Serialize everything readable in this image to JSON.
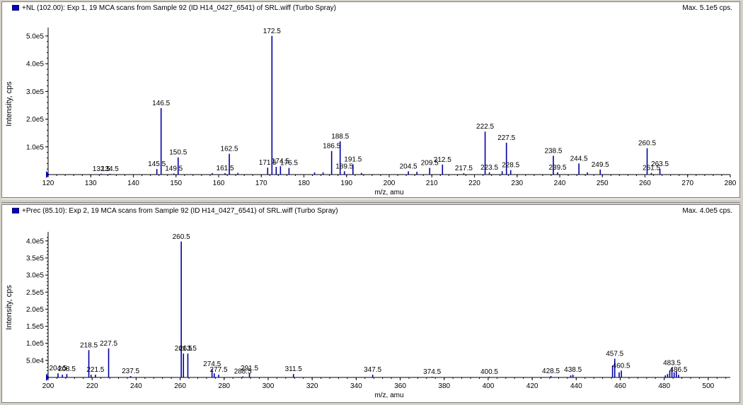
{
  "panels": [
    {
      "header": "+NL (102.00): Exp 1, 19 MCA scans from Sample 92 (ID H14_0427_6541) of SRL.wiff (Turbo Spray)",
      "max_label": "Max. 5.1e5 cps.",
      "legend_color": "#0000cc"
    },
    {
      "header": "+Prec (85.10): Exp 2, 19 MCA scans from Sample 92 (ID H14_0427_6541) of SRL.wiff (Turbo Spray)",
      "max_label": "Max. 4.0e5 cps.",
      "legend_color": "#0000cc"
    }
  ],
  "chart_data": [
    {
      "type": "bar",
      "title": "+NL (102.00): Exp 1, 19 MCA scans from Sample 92 (ID H14_0427_6541) of SRL.wiff (Turbo Spray)",
      "xlabel": "m/z, amu",
      "ylabel": "Intensity, cps",
      "xlim": [
        120,
        280
      ],
      "ylim": [
        0,
        510000
      ],
      "color": "#0000a0",
      "xticks": [
        120,
        130,
        140,
        150,
        160,
        170,
        180,
        190,
        200,
        210,
        220,
        230,
        240,
        250,
        260,
        270,
        280
      ],
      "yticks": [
        {
          "value": 100000,
          "label": "1.0e5"
        },
        {
          "value": 200000,
          "label": "2.0e5"
        },
        {
          "value": 300000,
          "label": "3.0e5"
        },
        {
          "value": 400000,
          "label": "4.0e5"
        },
        {
          "value": 500000,
          "label": "5.0e5"
        }
      ],
      "peaks": [
        {
          "mz": 132.5,
          "intensity": 3000,
          "label": "132.5"
        },
        {
          "mz": 134.5,
          "intensity": 3000,
          "label": "134.5"
        },
        {
          "mz": 145.5,
          "intensity": 20000,
          "label": "145.5"
        },
        {
          "mz": 146.5,
          "intensity": 240000,
          "label": "146.5"
        },
        {
          "mz": 149.5,
          "intensity": 4000,
          "label": "149.5"
        },
        {
          "mz": 150.5,
          "intensity": 62000,
          "label": "150.5"
        },
        {
          "mz": 158.5,
          "intensity": 5000,
          "label": ""
        },
        {
          "mz": 161.5,
          "intensity": 5000,
          "label": "161.5"
        },
        {
          "mz": 162.5,
          "intensity": 75000,
          "label": "162.5"
        },
        {
          "mz": 164.5,
          "intensity": 6000,
          "label": ""
        },
        {
          "mz": 171.5,
          "intensity": 25000,
          "label": "171.5"
        },
        {
          "mz": 172.5,
          "intensity": 500000,
          "label": "172.5"
        },
        {
          "mz": 173.5,
          "intensity": 28000,
          "label": ""
        },
        {
          "mz": 174.5,
          "intensity": 30000,
          "label": "174.5"
        },
        {
          "mz": 176.5,
          "intensity": 24000,
          "label": "176.5"
        },
        {
          "mz": 182.5,
          "intensity": 8000,
          "label": ""
        },
        {
          "mz": 184.5,
          "intensity": 8000,
          "label": ""
        },
        {
          "mz": 186.5,
          "intensity": 85000,
          "label": "186.5"
        },
        {
          "mz": 188.5,
          "intensity": 120000,
          "label": "188.5"
        },
        {
          "mz": 189.5,
          "intensity": 12000,
          "label": "189.5"
        },
        {
          "mz": 191.5,
          "intensity": 37000,
          "label": "191.5"
        },
        {
          "mz": 193.5,
          "intensity": 6000,
          "label": ""
        },
        {
          "mz": 204.5,
          "intensity": 12000,
          "label": "204.5"
        },
        {
          "mz": 206.5,
          "intensity": 10000,
          "label": ""
        },
        {
          "mz": 209.5,
          "intensity": 24000,
          "label": "209.5"
        },
        {
          "mz": 212.5,
          "intensity": 36000,
          "label": "212.5"
        },
        {
          "mz": 217.5,
          "intensity": 5000,
          "label": "217.5"
        },
        {
          "mz": 222.5,
          "intensity": 155000,
          "label": "222.5"
        },
        {
          "mz": 223.5,
          "intensity": 8000,
          "label": "223.5"
        },
        {
          "mz": 226.5,
          "intensity": 12000,
          "label": ""
        },
        {
          "mz": 227.5,
          "intensity": 115000,
          "label": "227.5"
        },
        {
          "mz": 228.5,
          "intensity": 16000,
          "label": "228.5"
        },
        {
          "mz": 238.5,
          "intensity": 68000,
          "label": "238.5"
        },
        {
          "mz": 239.5,
          "intensity": 8000,
          "label": "239.5"
        },
        {
          "mz": 244.5,
          "intensity": 40000,
          "label": "244.5"
        },
        {
          "mz": 246.5,
          "intensity": 8000,
          "label": ""
        },
        {
          "mz": 249.5,
          "intensity": 18000,
          "label": "249.5"
        },
        {
          "mz": 260.5,
          "intensity": 95000,
          "label": "260.5"
        },
        {
          "mz": 261.5,
          "intensity": 6000,
          "label": "261.5"
        },
        {
          "mz": 263.5,
          "intensity": 20000,
          "label": "263.5"
        }
      ]
    },
    {
      "type": "bar",
      "title": "+Prec (85.10): Exp 2, 19 MCA scans from Sample 92 (ID H14_0427_6541) of SRL.wiff (Turbo Spray)",
      "xlabel": "m/z, amu",
      "ylabel": "Intensity, cps",
      "xlim": [
        200,
        510
      ],
      "ylim": [
        0,
        410000
      ],
      "color": "#0000a0",
      "xticks": [
        200,
        220,
        240,
        260,
        280,
        300,
        320,
        340,
        360,
        380,
        400,
        420,
        440,
        460,
        480,
        500
      ],
      "yticks": [
        {
          "value": 50000,
          "label": "5.0e4"
        },
        {
          "value": 100000,
          "label": "1.0e5"
        },
        {
          "value": 150000,
          "label": "1.5e5"
        },
        {
          "value": 200000,
          "label": "2.0e5"
        },
        {
          "value": 250000,
          "label": "2.5e5"
        },
        {
          "value": 300000,
          "label": "3.0e5"
        },
        {
          "value": 350000,
          "label": "3.5e5"
        },
        {
          "value": 400000,
          "label": "4.0e5"
        }
      ],
      "peaks": [
        {
          "mz": 204.5,
          "intensity": 12000,
          "label": "204.5"
        },
        {
          "mz": 206.5,
          "intensity": 8000,
          "label": ""
        },
        {
          "mz": 208.5,
          "intensity": 10000,
          "label": "208.5"
        },
        {
          "mz": 218.5,
          "intensity": 80000,
          "label": "218.5"
        },
        {
          "mz": 219.5,
          "intensity": 8000,
          "label": ""
        },
        {
          "mz": 221.5,
          "intensity": 8000,
          "label": "221.5"
        },
        {
          "mz": 227.5,
          "intensity": 85000,
          "label": "227.5"
        },
        {
          "mz": 237.5,
          "intensity": 4000,
          "label": "237.5"
        },
        {
          "mz": 260.5,
          "intensity": 398000,
          "label": "260.5"
        },
        {
          "mz": 261.5,
          "intensity": 70000,
          "label": "261.5"
        },
        {
          "mz": 263.5,
          "intensity": 70000,
          "label": "263.5"
        },
        {
          "mz": 274.5,
          "intensity": 25000,
          "label": "274.5"
        },
        {
          "mz": 275.5,
          "intensity": 12000,
          "label": ""
        },
        {
          "mz": 277.5,
          "intensity": 8000,
          "label": "277.5"
        },
        {
          "mz": 288.5,
          "intensity": 3000,
          "label": "288.5"
        },
        {
          "mz": 291.5,
          "intensity": 12000,
          "label": "291.5"
        },
        {
          "mz": 311.5,
          "intensity": 10000,
          "label": "311.5"
        },
        {
          "mz": 347.5,
          "intensity": 8000,
          "label": "347.5"
        },
        {
          "mz": 374.5,
          "intensity": 2000,
          "label": "374.5"
        },
        {
          "mz": 400.5,
          "intensity": 2000,
          "label": "400.5"
        },
        {
          "mz": 428.5,
          "intensity": 4000,
          "label": "428.5"
        },
        {
          "mz": 437.5,
          "intensity": 6000,
          "label": ""
        },
        {
          "mz": 438.5,
          "intensity": 8000,
          "label": "438.5"
        },
        {
          "mz": 456.5,
          "intensity": 35000,
          "label": ""
        },
        {
          "mz": 457.5,
          "intensity": 55000,
          "label": "457.5"
        },
        {
          "mz": 459.5,
          "intensity": 15000,
          "label": ""
        },
        {
          "mz": 460.5,
          "intensity": 20000,
          "label": "460.5"
        },
        {
          "mz": 480.5,
          "intensity": 6000,
          "label": ""
        },
        {
          "mz": 481.5,
          "intensity": 10000,
          "label": ""
        },
        {
          "mz": 482.5,
          "intensity": 20000,
          "label": ""
        },
        {
          "mz": 483.5,
          "intensity": 28000,
          "label": "483.5"
        },
        {
          "mz": 484.5,
          "intensity": 15000,
          "label": ""
        },
        {
          "mz": 485.5,
          "intensity": 18000,
          "label": ""
        },
        {
          "mz": 486.5,
          "intensity": 8000,
          "label": "486.5"
        }
      ]
    }
  ]
}
